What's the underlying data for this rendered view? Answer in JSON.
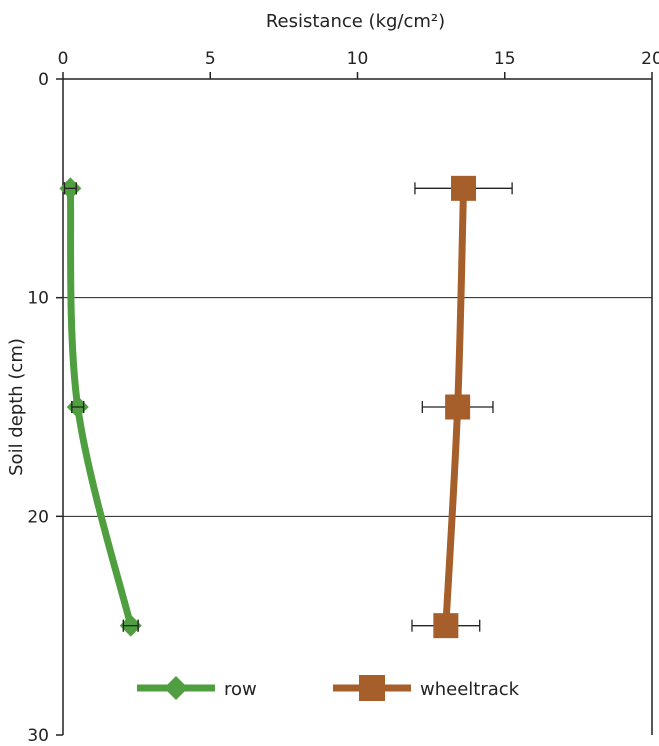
{
  "chart_data": {
    "type": "line",
    "title": "",
    "xlabel": "Resistance (kg/cm²)",
    "ylabel": "Soil depth (cm)",
    "xlim": [
      0,
      20
    ],
    "ylim": [
      0,
      30
    ],
    "x_ticks": [
      "0",
      "5",
      "10",
      "15",
      "20"
    ],
    "y_ticks": [
      "0",
      "10",
      "20",
      "30"
    ],
    "y_inverted": true,
    "x_axis_position": "top",
    "grid": "horizontal",
    "legend_position": "bottom",
    "series": [
      {
        "name": "row",
        "color": "#4f9e3f",
        "marker": "diamond",
        "points": [
          {
            "depth": 5,
            "resistance": 0.25,
            "err": 0.2
          },
          {
            "depth": 15,
            "resistance": 0.5,
            "err": 0.2
          },
          {
            "depth": 25,
            "resistance": 2.3,
            "err": 0.25
          }
        ]
      },
      {
        "name": "wheeltrack",
        "color": "#a65f2a",
        "marker": "square",
        "points": [
          {
            "depth": 5,
            "resistance": 13.6,
            "err": 1.65
          },
          {
            "depth": 15,
            "resistance": 13.4,
            "err": 1.2
          },
          {
            "depth": 25,
            "resistance": 13.0,
            "err": 1.15
          }
        ]
      }
    ]
  }
}
